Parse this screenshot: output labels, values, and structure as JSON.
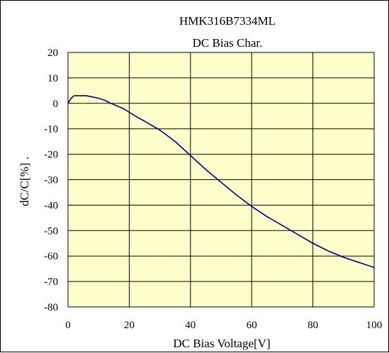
{
  "chart_data": {
    "type": "line",
    "title": "HMK316B7334ML",
    "subtitle": "DC Bias Char.",
    "xlabel": "DC Bias Voltage[V]",
    "ylabel": "dC/C[%] .",
    "xlim": [
      0,
      100
    ],
    "ylim": [
      -80,
      20
    ],
    "x_ticks": [
      "0",
      "20",
      "40",
      "60",
      "80",
      "100"
    ],
    "y_ticks": [
      "20",
      "10",
      "0",
      "-10",
      "-20",
      "-30",
      "-40",
      "-50",
      "-60",
      "-70",
      "-80"
    ],
    "grid": true,
    "plot_background": "#ffffcc",
    "line_color": "#000080",
    "series": [
      {
        "x": [
          0,
          1,
          2,
          3,
          4,
          5,
          6,
          8,
          10,
          12,
          14,
          16,
          18,
          20,
          22,
          25,
          30,
          35,
          40,
          45,
          50,
          55,
          60,
          65,
          70,
          75,
          80,
          85,
          90,
          95,
          100
        ],
        "y": [
          0,
          2,
          3,
          3,
          3,
          3,
          3,
          2.5,
          2,
          1.2,
          0,
          -1,
          -2,
          -3.5,
          -5,
          -7,
          -10.5,
          -15,
          -20.5,
          -26,
          -31,
          -36,
          -40.5,
          -44.5,
          -48,
          -51.5,
          -55,
          -58,
          -60.5,
          -62.5,
          -64.5
        ]
      }
    ]
  }
}
